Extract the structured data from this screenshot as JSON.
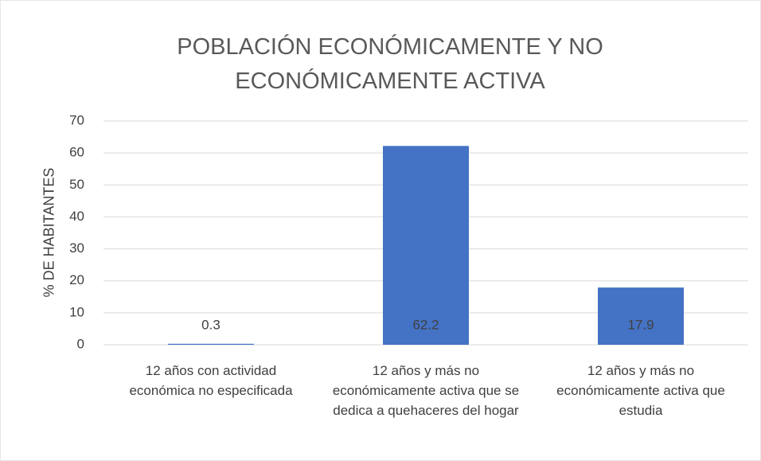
{
  "chart_data": {
    "type": "bar",
    "title": "POBLACIÓN ECONÓMICAMENTE Y NO ECONÓMICAMENTE ACTIVA",
    "y_label": "% DE HABITANTES",
    "categories": [
      "12 años con actividad económica no especificada",
      "12 años y más no económicamente activa que se dedica a quehaceres del hogar",
      "12 años y más no económicamente activa que estudia"
    ],
    "values": [
      0.3,
      62.2,
      17.9
    ],
    "color": "#4472c4",
    "ylim": [
      0,
      70
    ],
    "yticks": [
      0,
      10,
      20,
      30,
      40,
      50,
      60,
      70
    ],
    "grid": true
  }
}
